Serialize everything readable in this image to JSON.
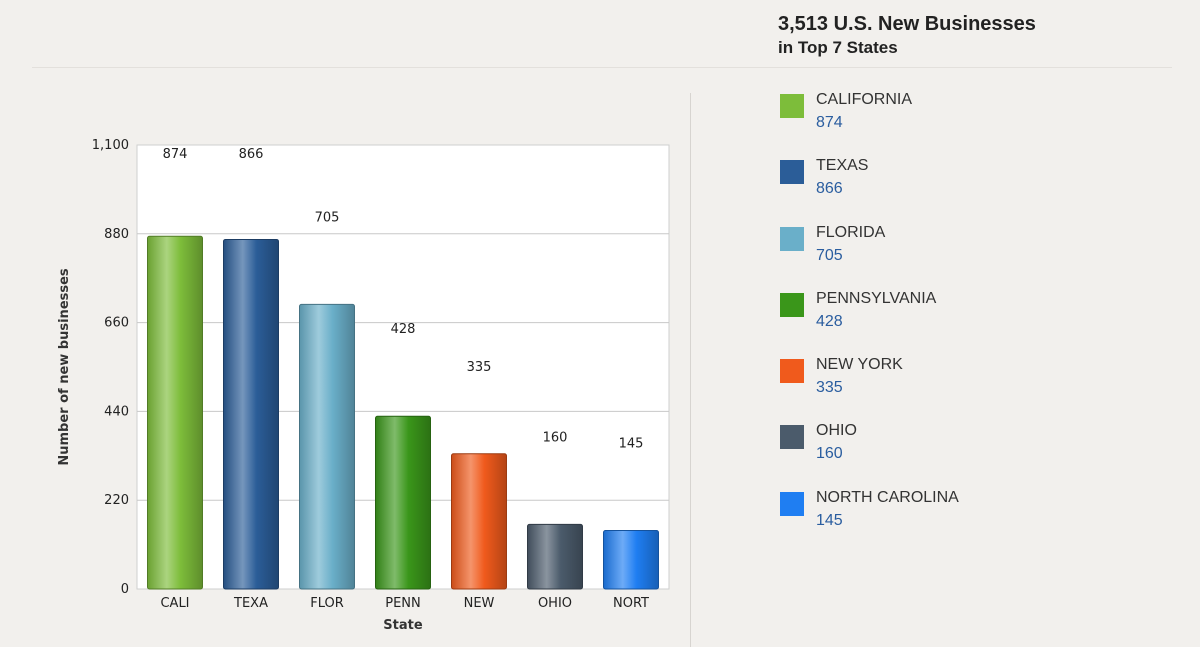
{
  "header": {
    "title_line1": "3,513 U.S. New Businesses",
    "title_line2": "in Top 7 States"
  },
  "chart_data": {
    "type": "bar",
    "categories": [
      "CALI",
      "TEXA",
      "FLOR",
      "PENN",
      "NEW",
      "OHIO",
      "NORT"
    ],
    "values": [
      874,
      866,
      705,
      428,
      335,
      160,
      145
    ],
    "colors": [
      "#7dbd3a",
      "#2b5d98",
      "#6aafc9",
      "#3a961a",
      "#f05a1c",
      "#4b5b6b",
      "#1f7ef2"
    ],
    "xlabel": "State",
    "ylabel": "Number of new businesses",
    "ylim": [
      0,
      1100
    ],
    "yticks": [
      0,
      220,
      440,
      660,
      880,
      1100
    ],
    "ytick_labels": [
      "0",
      "220",
      "440",
      "660",
      "880",
      "1,100"
    ],
    "grid": true,
    "legend_position": "right"
  },
  "legend": {
    "items": [
      {
        "name": "CALIFORNIA",
        "value": "874",
        "color": "#7dbd3a"
      },
      {
        "name": "TEXAS",
        "value": "866",
        "color": "#2b5d98"
      },
      {
        "name": "FLORIDA",
        "value": "705",
        "color": "#6aafc9"
      },
      {
        "name": "PENNSYLVANIA",
        "value": "428",
        "color": "#3a961a"
      },
      {
        "name": "NEW YORK",
        "value": "335",
        "color": "#f05a1c"
      },
      {
        "name": "OHIO",
        "value": "160",
        "color": "#4b5b6b"
      },
      {
        "name": "NORTH CAROLINA",
        "value": "145",
        "color": "#1f7ef2"
      }
    ]
  }
}
